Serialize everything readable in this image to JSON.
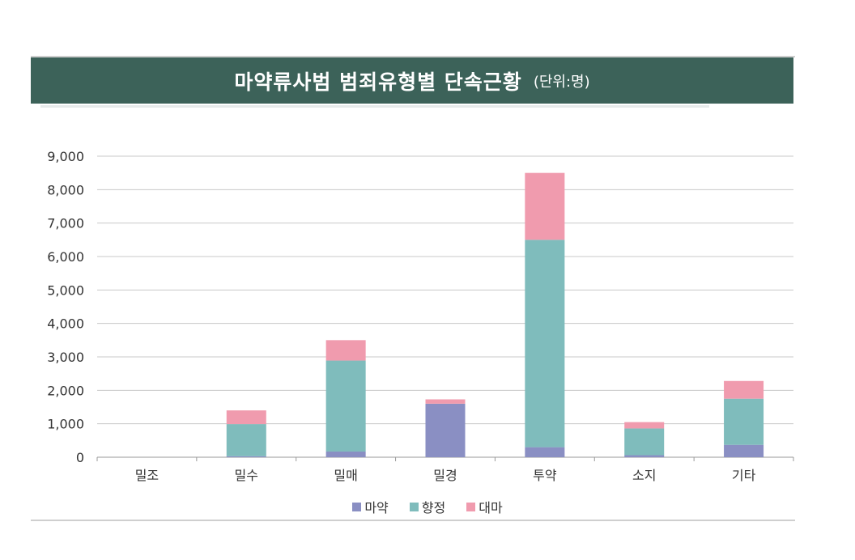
{
  "title": {
    "main": "마약류사범 범죄유형별 단속근황",
    "unit": "(단위:명)"
  },
  "colors": {
    "title_bg": "#3c6259",
    "마약": "#8a8fc3",
    "향정": "#7fbcbc",
    "대마": "#f09bae",
    "grid": "#c8c8c8"
  },
  "chart_data": {
    "type": "bar",
    "stacked": true,
    "categories": [
      "밀조",
      "밀수",
      "밀매",
      "밀경",
      "투약",
      "소지",
      "기타"
    ],
    "series": [
      {
        "name": "마약",
        "values": [
          0,
          30,
          170,
          1600,
          300,
          60,
          370
        ]
      },
      {
        "name": "향정",
        "values": [
          0,
          960,
          2720,
          0,
          6200,
          800,
          1380
        ]
      },
      {
        "name": "대마",
        "values": [
          0,
          410,
          610,
          130,
          2000,
          190,
          530
        ]
      }
    ],
    "ylim": [
      0,
      9000
    ],
    "yticks": [
      "0",
      "1,000",
      "2,000",
      "3,000",
      "4,000",
      "5,000",
      "6,000",
      "7,000",
      "8,000",
      "9,000"
    ],
    "grid": true,
    "legend": "bottom"
  }
}
